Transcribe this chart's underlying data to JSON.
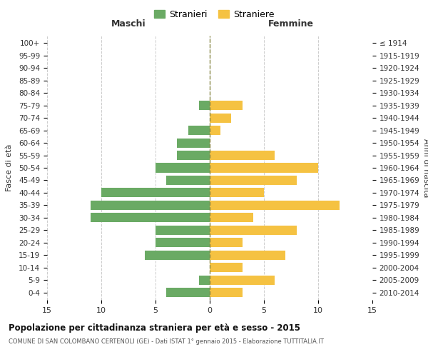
{
  "age_groups": [
    "0-4",
    "5-9",
    "10-14",
    "15-19",
    "20-24",
    "25-29",
    "30-34",
    "35-39",
    "40-44",
    "45-49",
    "50-54",
    "55-59",
    "60-64",
    "65-69",
    "70-74",
    "75-79",
    "80-84",
    "85-89",
    "90-94",
    "95-99",
    "100+"
  ],
  "birth_years": [
    "2010-2014",
    "2005-2009",
    "2000-2004",
    "1995-1999",
    "1990-1994",
    "1985-1989",
    "1980-1984",
    "1975-1979",
    "1970-1974",
    "1965-1969",
    "1960-1964",
    "1955-1959",
    "1950-1954",
    "1945-1949",
    "1940-1944",
    "1935-1939",
    "1930-1934",
    "1925-1929",
    "1920-1924",
    "1915-1919",
    "≤ 1914"
  ],
  "males": [
    4,
    1,
    0,
    6,
    5,
    5,
    11,
    11,
    10,
    4,
    5,
    3,
    3,
    2,
    0,
    1,
    0,
    0,
    0,
    0,
    0
  ],
  "females": [
    3,
    6,
    3,
    7,
    3,
    8,
    4,
    12,
    5,
    8,
    10,
    6,
    0,
    1,
    2,
    3,
    0,
    0,
    0,
    0,
    0
  ],
  "male_color": "#6aaa64",
  "female_color": "#f5c242",
  "xlim": 15,
  "title": "Popolazione per cittadinanza straniera per età e sesso - 2015",
  "subtitle": "COMUNE DI SAN COLOMBANO CERTENOLI (GE) - Dati ISTAT 1° gennaio 2015 - Elaborazione TUTTITALIA.IT",
  "left_label": "Maschi",
  "right_label": "Femmine",
  "left_axis_label": "Fasce di età",
  "right_axis_label": "Anni di nascita",
  "legend_male": "Stranieri",
  "legend_female": "Straniere",
  "background_color": "#ffffff",
  "grid_color": "#cccccc",
  "center_line_color": "#888844",
  "bar_height": 0.75
}
